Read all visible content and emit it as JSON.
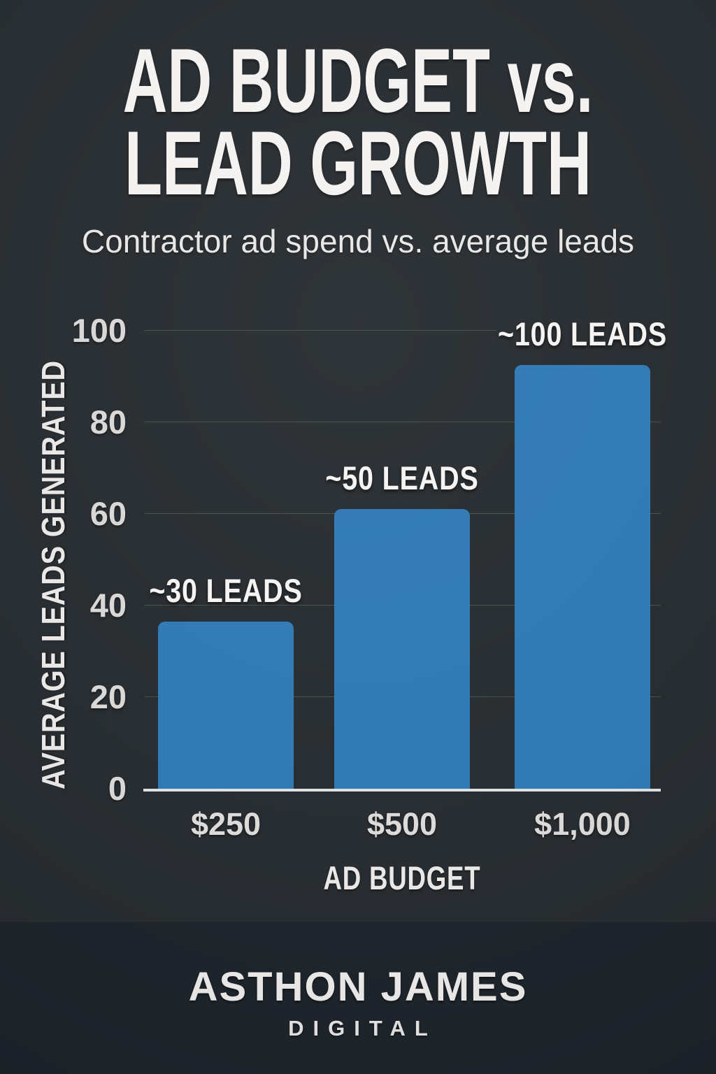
{
  "header": {
    "title_line1": "AD BUDGET vs.",
    "title_line2": "LEAD GROWTH",
    "subtitle": "Contractor ad spend vs. average leads"
  },
  "chart_data": {
    "type": "bar",
    "title": "AD BUDGET vs. LEAD GROWTH",
    "subtitle": "Contractor ad spend vs. average leads",
    "categories": [
      "$250",
      "$500",
      "$1,000"
    ],
    "values": [
      36.5,
      61,
      92.5
    ],
    "bar_labels": [
      "~30 LEADS",
      "~50 LEADS",
      "~100 LEADS"
    ],
    "xlabel": "AD BUDGET",
    "ylabel": "AVERAGE LEADS GENERATED",
    "ylim": [
      0,
      100
    ],
    "yticks": [
      0,
      20,
      40,
      60,
      80,
      100
    ],
    "grid": true,
    "legend": false
  },
  "colors": {
    "background": "#282d31",
    "footer_band": "#1f262d",
    "bar": "#317ab6",
    "text": "#f4f3f1"
  },
  "footer": {
    "brand": "ASTHON JAMES",
    "brand_sub": "DIGITAL"
  }
}
